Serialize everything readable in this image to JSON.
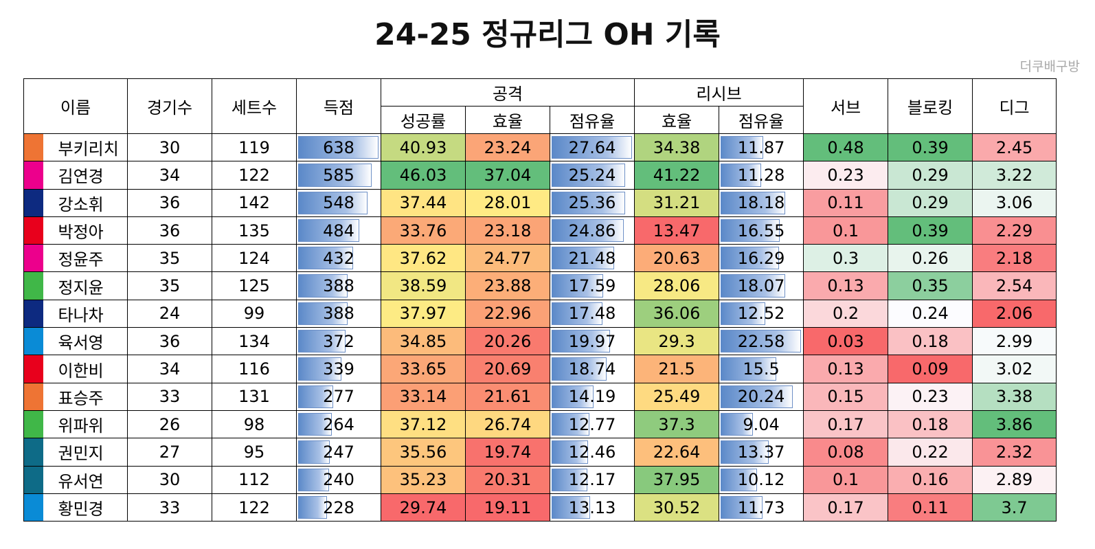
{
  "title": "24-25 정규리그 OH 기록",
  "credit": "더쿠배구방",
  "chart_data": {
    "type": "table",
    "header_groups": [
      {
        "label": "이름"
      },
      {
        "label": "경기수"
      },
      {
        "label": "세트수"
      },
      {
        "label": "득점"
      },
      {
        "label": "공격",
        "sub": [
          "성공률",
          "효율",
          "점유율"
        ]
      },
      {
        "label": "리시브",
        "sub": [
          "효율",
          "점유율"
        ]
      },
      {
        "label": "서브"
      },
      {
        "label": "블로킹"
      },
      {
        "label": "디그"
      }
    ],
    "rows": [
      {
        "team_color": "#ee7434",
        "name": "부키리치",
        "games": "30",
        "sets": "119",
        "points": "638",
        "atk_success": "40.93",
        "atk_eff": "23.24",
        "atk_share": "27.64",
        "rcv_eff": "34.38",
        "rcv_share": "11.87",
        "serve": "0.48",
        "block": "0.39",
        "dig": "2.45"
      },
      {
        "team_color": "#ec008c",
        "name": "김연경",
        "games": "34",
        "sets": "122",
        "points": "585",
        "atk_success": "46.03",
        "atk_eff": "37.04",
        "atk_share": "25.24",
        "rcv_eff": "41.22",
        "rcv_share": "11.28",
        "serve": "0.23",
        "block": "0.29",
        "dig": "3.22"
      },
      {
        "team_color": "#0d2a80",
        "name": "강소휘",
        "games": "36",
        "sets": "142",
        "points": "548",
        "atk_success": "37.44",
        "atk_eff": "28.01",
        "atk_share": "25.36",
        "rcv_eff": "31.21",
        "rcv_share": "18.18",
        "serve": "0.11",
        "block": "0.29",
        "dig": "3.06"
      },
      {
        "team_color": "#e8001c",
        "name": "박정아",
        "games": "36",
        "sets": "135",
        "points": "484",
        "atk_success": "33.76",
        "atk_eff": "23.18",
        "atk_share": "24.86",
        "rcv_eff": "13.47",
        "rcv_share": "16.55",
        "serve": "0.1",
        "block": "0.39",
        "dig": "2.29"
      },
      {
        "team_color": "#ec008c",
        "name": "정윤주",
        "games": "35",
        "sets": "124",
        "points": "432",
        "atk_success": "37.62",
        "atk_eff": "24.77",
        "atk_share": "21.48",
        "rcv_eff": "20.63",
        "rcv_share": "16.29",
        "serve": "0.3",
        "block": "0.26",
        "dig": "2.18"
      },
      {
        "team_color": "#40b748",
        "name": "정지윤",
        "games": "35",
        "sets": "125",
        "points": "388",
        "atk_success": "38.59",
        "atk_eff": "23.88",
        "atk_share": "17.59",
        "rcv_eff": "28.06",
        "rcv_share": "18.07",
        "serve": "0.13",
        "block": "0.35",
        "dig": "2.54"
      },
      {
        "team_color": "#0d2a80",
        "name": "타나차",
        "games": "24",
        "sets": "99",
        "points": "388",
        "atk_success": "37.97",
        "atk_eff": "22.96",
        "atk_share": "17.48",
        "rcv_eff": "36.06",
        "rcv_share": "12.52",
        "serve": "0.2",
        "block": "0.24",
        "dig": "2.06"
      },
      {
        "team_color": "#0a8bd6",
        "name": "육서영",
        "games": "36",
        "sets": "134",
        "points": "372",
        "atk_success": "34.85",
        "atk_eff": "20.26",
        "atk_share": "19.97",
        "rcv_eff": "29.3",
        "rcv_share": "22.58",
        "serve": "0.03",
        "block": "0.18",
        "dig": "2.99"
      },
      {
        "team_color": "#e8001c",
        "name": "이한비",
        "games": "34",
        "sets": "116",
        "points": "339",
        "atk_success": "33.65",
        "atk_eff": "20.69",
        "atk_share": "18.74",
        "rcv_eff": "21.5",
        "rcv_share": "15.5",
        "serve": "0.13",
        "block": "0.09",
        "dig": "3.02"
      },
      {
        "team_color": "#ee7434",
        "name": "표승주",
        "games": "33",
        "sets": "131",
        "points": "277",
        "atk_success": "33.14",
        "atk_eff": "21.61",
        "atk_share": "14.19",
        "rcv_eff": "25.49",
        "rcv_share": "20.24",
        "serve": "0.15",
        "block": "0.23",
        "dig": "3.38"
      },
      {
        "team_color": "#40b748",
        "name": "위파위",
        "games": "26",
        "sets": "98",
        "points": "264",
        "atk_success": "37.12",
        "atk_eff": "26.74",
        "atk_share": "12.77",
        "rcv_eff": "37.3",
        "rcv_share": "9.04",
        "serve": "0.17",
        "block": "0.18",
        "dig": "3.86"
      },
      {
        "team_color": "#0e6b87",
        "name": "권민지",
        "games": "27",
        "sets": "95",
        "points": "247",
        "atk_success": "35.56",
        "atk_eff": "19.74",
        "atk_share": "12.46",
        "rcv_eff": "22.64",
        "rcv_share": "13.37",
        "serve": "0.08",
        "block": "0.22",
        "dig": "2.32"
      },
      {
        "team_color": "#0e6b87",
        "name": "유서연",
        "games": "30",
        "sets": "112",
        "points": "240",
        "atk_success": "35.23",
        "atk_eff": "20.31",
        "atk_share": "12.17",
        "rcv_eff": "37.95",
        "rcv_share": "10.12",
        "serve": "0.1",
        "block": "0.16",
        "dig": "2.89"
      },
      {
        "team_color": "#0a8bd6",
        "name": "황민경",
        "games": "33",
        "sets": "122",
        "points": "228",
        "atk_success": "29.74",
        "atk_eff": "19.11",
        "atk_share": "13.13",
        "rcv_eff": "30.52",
        "rcv_share": "11.73",
        "serve": "0.17",
        "block": "0.11",
        "dig": "3.7"
      }
    ]
  }
}
